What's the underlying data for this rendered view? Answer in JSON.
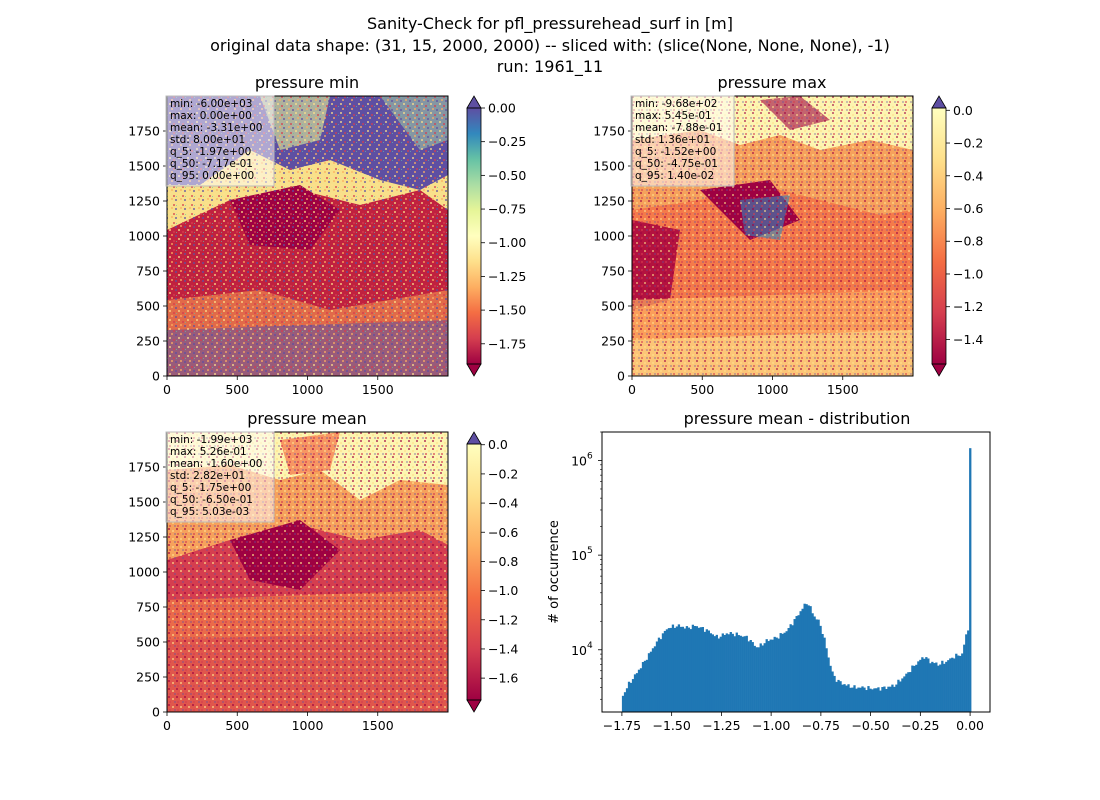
{
  "suptitle": {
    "line1": "Sanity-Check for pfl_pressurehead_surf in [m]",
    "line2": "original data shape: (31, 15, 2000, 2000) -- sliced with: (slice(None, None, None), -1)",
    "line3": "run: 1961_11"
  },
  "colormap": "Spectral",
  "colors": {
    "over": "#5e4fa2",
    "under": "#9e0142",
    "histogram": "#1f77b4"
  },
  "chart_data": [
    {
      "type": "heatmap",
      "title": "pressure min",
      "x_range": [
        0,
        2000
      ],
      "y_range": [
        0,
        2000
      ],
      "x_ticks": [
        "0",
        "500",
        "1000",
        "1500"
      ],
      "y_ticks": [
        "0",
        "250",
        "500",
        "750",
        "1000",
        "1250",
        "1500",
        "1750"
      ],
      "colorbar": {
        "vmin": -1.9,
        "vmax": 0.0,
        "ticks": [
          "0.00",
          "−0.25",
          "−0.50",
          "−0.75",
          "−1.00",
          "−1.25",
          "−1.50",
          "−1.75"
        ],
        "tick_values": [
          0,
          -0.25,
          -0.5,
          -0.75,
          -1.0,
          -1.25,
          -1.5,
          -1.75
        ],
        "extend": "both"
      },
      "stats": [
        "min: -6.00e+03",
        "max: 0.00e+00",
        "mean: -3.31e+00",
        "std: 8.00e+01",
        "q_5: -1.97e+00",
        "q_50: -7.17e-01",
        "q_95: 0.00e+00"
      ]
    },
    {
      "type": "heatmap",
      "title": "pressure max",
      "x_range": [
        0,
        2000
      ],
      "y_range": [
        0,
        2000
      ],
      "x_ticks": [
        "0",
        "500",
        "1000",
        "1500"
      ],
      "y_ticks": [
        "0",
        "250",
        "500",
        "750",
        "1000",
        "1250",
        "1500",
        "1750"
      ],
      "colorbar": {
        "vmin": -1.55,
        "vmax": 0.014,
        "ticks": [
          "0.0",
          "−0.2",
          "−0.4",
          "−0.6",
          "−0.8",
          "−1.0",
          "−1.2",
          "−1.4"
        ],
        "tick_values": [
          0,
          -0.2,
          -0.4,
          -0.6,
          -0.8,
          -1.0,
          -1.2,
          -1.4
        ],
        "extend": "both"
      },
      "stats": [
        "min: -9.68e+02",
        "max: 5.45e-01",
        "mean: -7.88e-01",
        "std: 1.36e+01",
        "q_5: -1.52e+00",
        "q_50: -4.75e-01",
        "q_95: 1.40e-02"
      ]
    },
    {
      "type": "heatmap",
      "title": "pressure mean",
      "x_range": [
        0,
        2000
      ],
      "y_range": [
        0,
        2000
      ],
      "x_ticks": [
        "0",
        "500",
        "1000",
        "1500"
      ],
      "y_ticks": [
        "0",
        "250",
        "500",
        "750",
        "1000",
        "1250",
        "1500",
        "1750"
      ],
      "colorbar": {
        "vmin": -1.75,
        "vmax": 0.005,
        "ticks": [
          "0.0",
          "−0.2",
          "−0.4",
          "−0.6",
          "−0.8",
          "−1.0",
          "−1.2",
          "−1.4",
          "−1.6"
        ],
        "tick_values": [
          0,
          -0.2,
          -0.4,
          -0.6,
          -0.8,
          -1.0,
          -1.2,
          -1.4,
          -1.6
        ],
        "extend": "both"
      },
      "stats": [
        "min: -1.99e+03",
        "max: 5.26e-01",
        "mean: -1.60e+00",
        "std: 2.82e+01",
        "q_5: -1.75e+00",
        "q_50: -6.50e-01",
        "q_95: 5.03e-03"
      ]
    },
    {
      "type": "bar",
      "title": "pressure mean - distribution",
      "xlabel": "",
      "ylabel": "# of occurrence",
      "yscale": "log",
      "xlim": [
        -1.85,
        0.1
      ],
      "ylim": [
        2200,
        2000000
      ],
      "x_ticks": [
        "−1.75",
        "−1.50",
        "−1.25",
        "−1.00",
        "−0.75",
        "−0.50",
        "−0.25",
        "0.00"
      ],
      "x_tick_values": [
        -1.75,
        -1.5,
        -1.25,
        -1.0,
        -0.75,
        -0.5,
        -0.25,
        0.0
      ],
      "y_ticks": [
        "10",
        "10",
        "10"
      ],
      "y_tick_exponents": [
        "4",
        "5",
        "6"
      ],
      "y_tick_values": [
        10000,
        100000,
        1000000
      ],
      "bin_range": [
        -1.75,
        0.005
      ],
      "profile_x": [
        -1.75,
        -1.72,
        -1.68,
        -1.62,
        -1.57,
        -1.52,
        -1.47,
        -1.42,
        -1.38,
        -1.32,
        -1.27,
        -1.22,
        -1.17,
        -1.12,
        -1.07,
        -1.02,
        -0.97,
        -0.92,
        -0.88,
        -0.85,
        -0.82,
        -0.8,
        -0.78,
        -0.76,
        -0.74,
        -0.72,
        -0.7,
        -0.68,
        -0.65,
        -0.62,
        -0.58,
        -0.54,
        -0.5,
        -0.46,
        -0.42,
        -0.38,
        -0.35,
        -0.32,
        -0.29,
        -0.26,
        -0.23,
        -0.2,
        -0.16,
        -0.12,
        -0.08,
        -0.04,
        -0.015,
        0.0
      ],
      "profile_counts": [
        3100,
        4200,
        5500,
        8500,
        12500,
        17000,
        18000,
        17000,
        18000,
        16000,
        13500,
        15000,
        14500,
        13500,
        10500,
        12500,
        13500,
        16000,
        21000,
        26000,
        32000,
        27000,
        22000,
        20000,
        15000,
        10000,
        6500,
        5000,
        4500,
        4200,
        4000,
        4000,
        3900,
        3900,
        4000,
        4200,
        4800,
        5500,
        6500,
        7500,
        8500,
        7500,
        7000,
        7500,
        8500,
        9000,
        16000,
        1350000
      ]
    }
  ]
}
